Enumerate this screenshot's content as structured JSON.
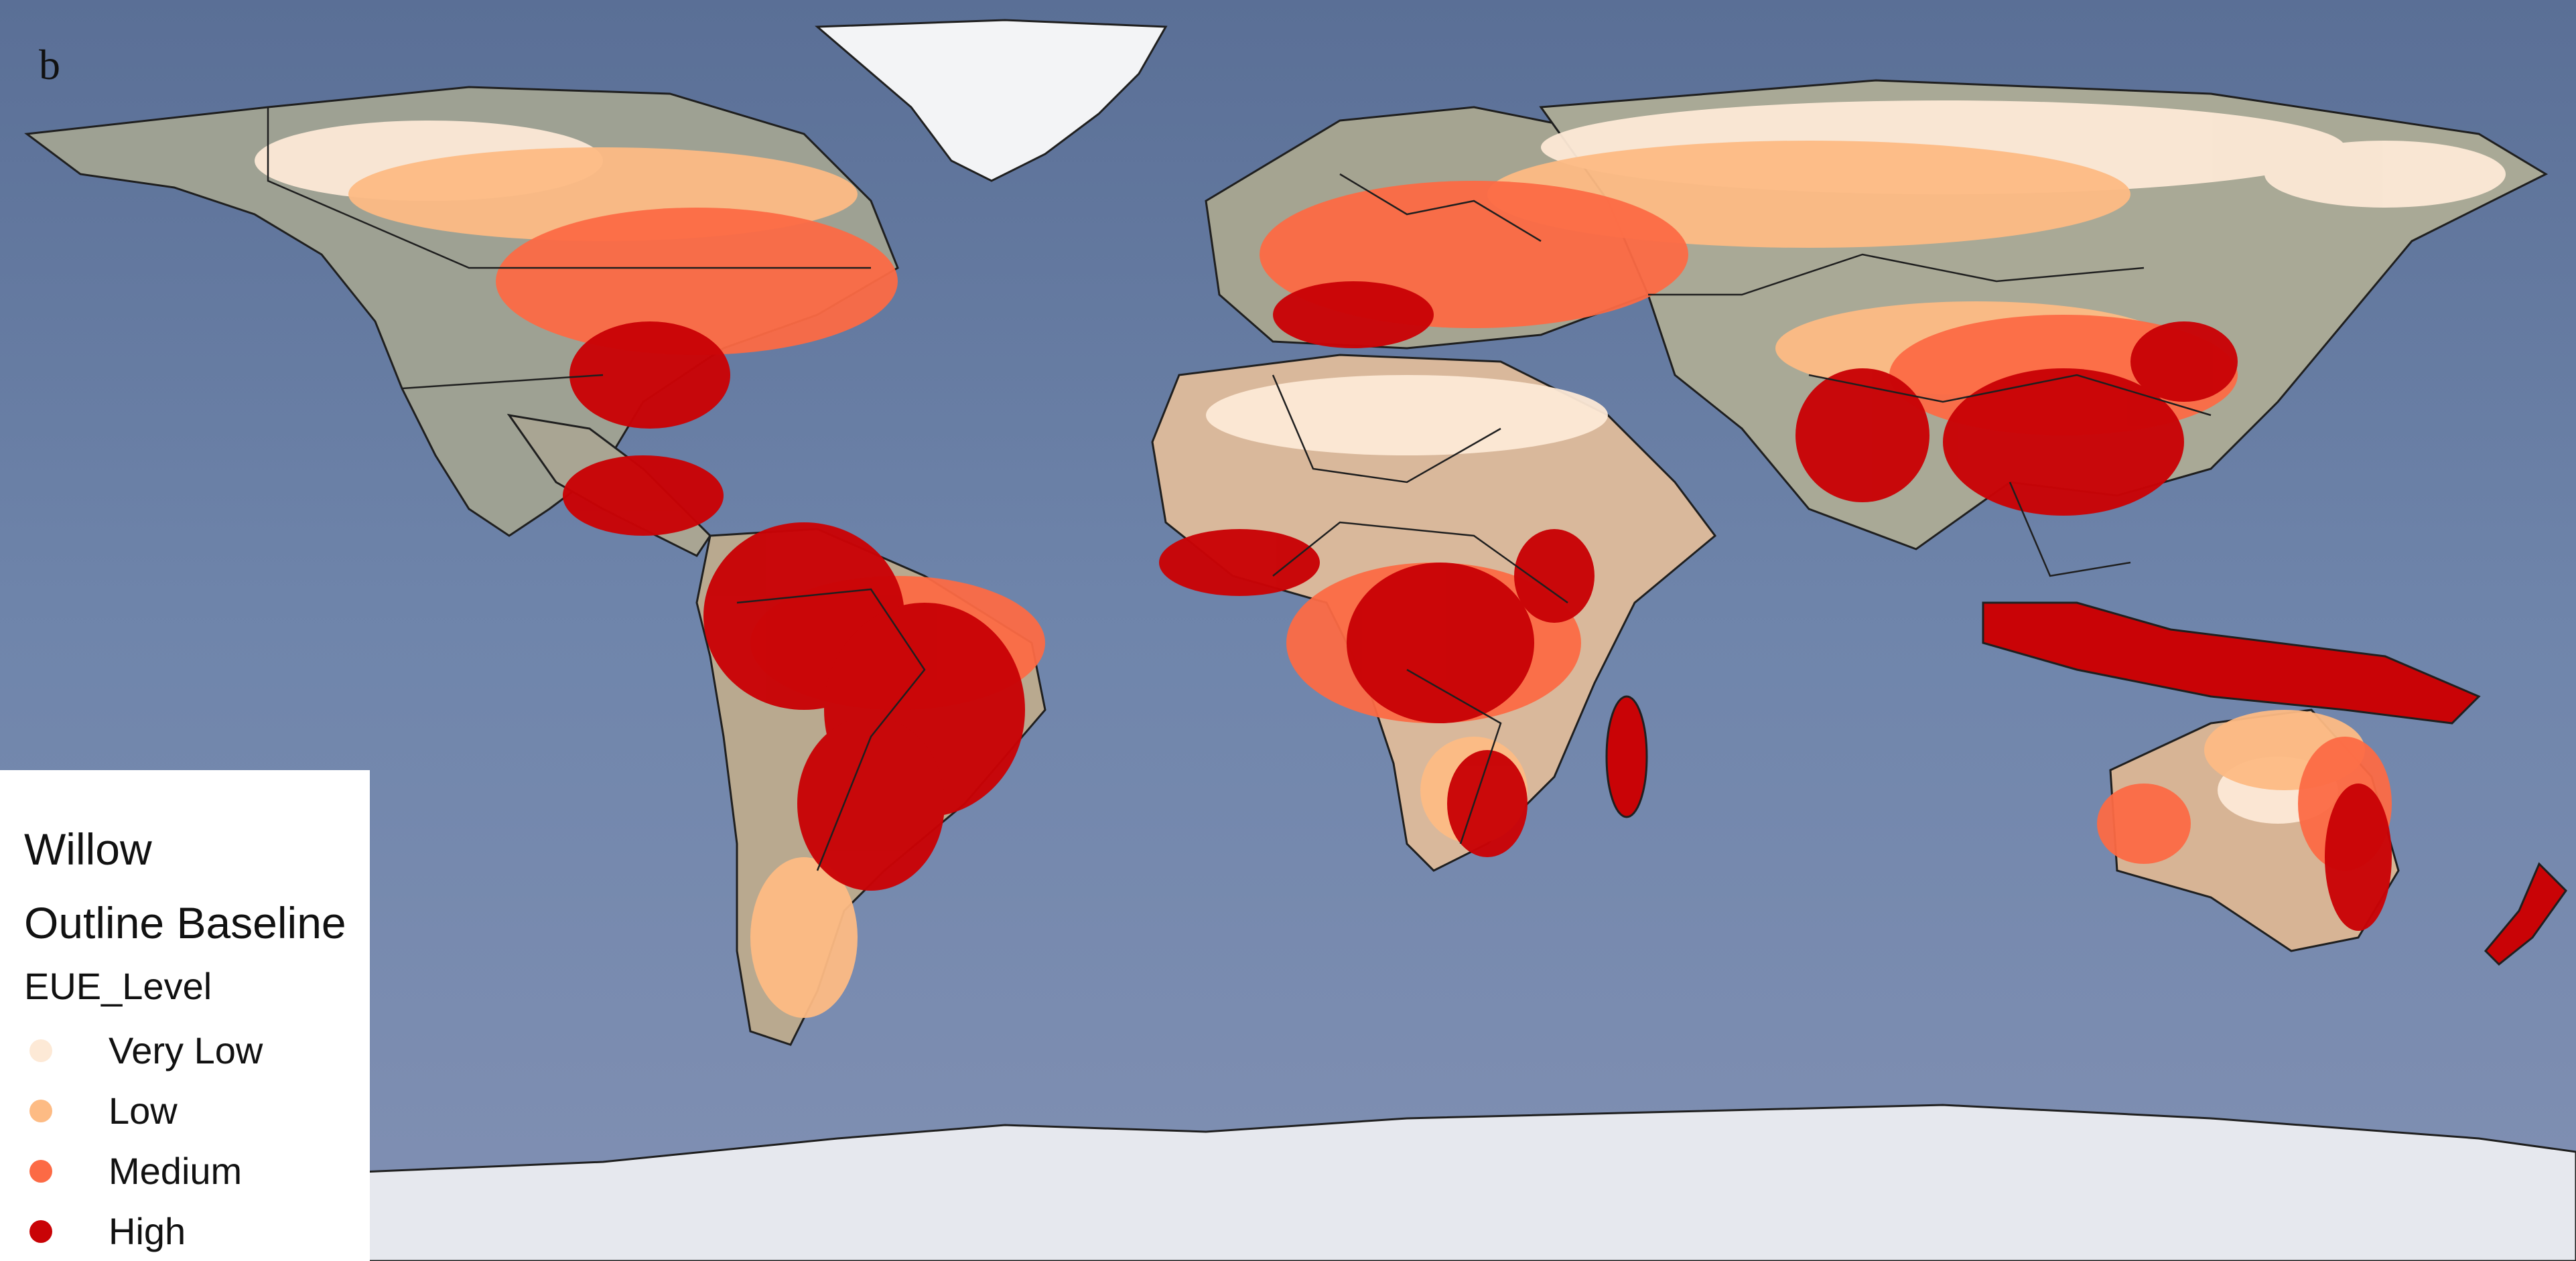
{
  "panel_label": "b",
  "legend": {
    "title": "Willow",
    "subtitle": "Outline Baseline",
    "field": "EUE_Level",
    "items": [
      {
        "label": "Very Low",
        "color": "#fde9d6",
        "name": "very-low"
      },
      {
        "label": "Low",
        "color": "#fdbb84",
        "name": "low"
      },
      {
        "label": "Medium",
        "color": "#fc6a45",
        "name": "medium"
      },
      {
        "label": "High",
        "color": "#c90306",
        "name": "high"
      }
    ]
  },
  "colors": {
    "ocean": "#6f84a8",
    "ocean_dark": "#4f6489",
    "land": "#a9a593",
    "desert": "#d9b89b",
    "ice": "#eceff5",
    "border": "#1f1f1f"
  }
}
